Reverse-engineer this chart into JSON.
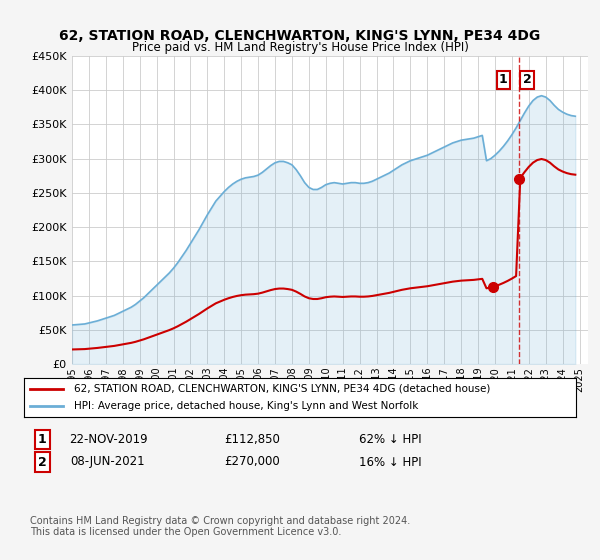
{
  "title": "62, STATION ROAD, CLENCHWARTON, KING'S LYNN, PE34 4DG",
  "subtitle": "Price paid vs. HM Land Registry's House Price Index (HPI)",
  "legend_line1": "62, STATION ROAD, CLENCHWARTON, KING'S LYNN, PE34 4DG (detached house)",
  "legend_line2": "HPI: Average price, detached house, King's Lynn and West Norfolk",
  "footer": "Contains HM Land Registry data © Crown copyright and database right 2024.\nThis data is licensed under the Open Government Licence v3.0.",
  "transaction1_label": "1",
  "transaction1_date": "22-NOV-2019",
  "transaction1_price": "£112,850",
  "transaction1_hpi": "62% ↓ HPI",
  "transaction2_label": "2",
  "transaction2_date": "08-JUN-2021",
  "transaction2_price": "£270,000",
  "transaction2_hpi": "16% ↓ HPI",
  "hpi_color": "#6baed6",
  "price_color": "#cc0000",
  "background_color": "#f5f5f5",
  "plot_bg_color": "#ffffff",
  "ylim": [
    0,
    450000
  ],
  "yticks": [
    0,
    50000,
    100000,
    150000,
    200000,
    250000,
    300000,
    350000,
    400000,
    450000
  ],
  "xlim_start": 1995.0,
  "xlim_end": 2025.5,
  "xticks": [
    1995,
    1996,
    1997,
    1998,
    1999,
    2000,
    2001,
    2002,
    2003,
    2004,
    2005,
    2006,
    2007,
    2008,
    2009,
    2010,
    2011,
    2012,
    2013,
    2014,
    2015,
    2016,
    2017,
    2018,
    2019,
    2020,
    2021,
    2022,
    2023,
    2024,
    2025
  ],
  "hpi_years": [
    1995.0,
    1995.25,
    1995.5,
    1995.75,
    1996.0,
    1996.25,
    1996.5,
    1996.75,
    1997.0,
    1997.25,
    1997.5,
    1997.75,
    1998.0,
    1998.25,
    1998.5,
    1998.75,
    1999.0,
    1999.25,
    1999.5,
    1999.75,
    2000.0,
    2000.25,
    2000.5,
    2000.75,
    2001.0,
    2001.25,
    2001.5,
    2001.75,
    2002.0,
    2002.25,
    2002.5,
    2002.75,
    2003.0,
    2003.25,
    2003.5,
    2003.75,
    2004.0,
    2004.25,
    2004.5,
    2004.75,
    2005.0,
    2005.25,
    2005.5,
    2005.75,
    2006.0,
    2006.25,
    2006.5,
    2006.75,
    2007.0,
    2007.25,
    2007.5,
    2007.75,
    2008.0,
    2008.25,
    2008.5,
    2008.75,
    2009.0,
    2009.25,
    2009.5,
    2009.75,
    2010.0,
    2010.25,
    2010.5,
    2010.75,
    2011.0,
    2011.25,
    2011.5,
    2011.75,
    2012.0,
    2012.25,
    2012.5,
    2012.75,
    2013.0,
    2013.25,
    2013.5,
    2013.75,
    2014.0,
    2014.25,
    2014.5,
    2014.75,
    2015.0,
    2015.25,
    2015.5,
    2015.75,
    2016.0,
    2016.25,
    2016.5,
    2016.75,
    2017.0,
    2017.25,
    2017.5,
    2017.75,
    2018.0,
    2018.25,
    2018.5,
    2018.75,
    2019.0,
    2019.25,
    2019.5,
    2019.75,
    2020.0,
    2020.25,
    2020.5,
    2020.75,
    2021.0,
    2021.25,
    2021.5,
    2021.75,
    2022.0,
    2022.25,
    2022.5,
    2022.75,
    2023.0,
    2023.25,
    2023.5,
    2023.75,
    2024.0,
    2024.25,
    2024.5,
    2024.75
  ],
  "hpi_values": [
    57000,
    57500,
    58000,
    58500,
    60000,
    61500,
    63000,
    65000,
    67000,
    69000,
    71000,
    74000,
    77000,
    80000,
    83000,
    87000,
    92000,
    97000,
    103000,
    109000,
    115000,
    121000,
    127000,
    133000,
    140000,
    148000,
    157000,
    166000,
    176000,
    186000,
    196000,
    207000,
    218000,
    228000,
    238000,
    245000,
    252000,
    258000,
    263000,
    267000,
    270000,
    272000,
    273000,
    274000,
    276000,
    280000,
    285000,
    290000,
    294000,
    296000,
    296000,
    294000,
    291000,
    284000,
    275000,
    265000,
    258000,
    255000,
    255000,
    258000,
    262000,
    264000,
    265000,
    264000,
    263000,
    264000,
    265000,
    265000,
    264000,
    264000,
    265000,
    267000,
    270000,
    273000,
    276000,
    279000,
    283000,
    287000,
    291000,
    294000,
    297000,
    299000,
    301000,
    303000,
    305000,
    308000,
    311000,
    314000,
    317000,
    320000,
    323000,
    325000,
    327000,
    328000,
    329000,
    330000,
    332000,
    334000,
    297000,
    300000,
    305000,
    311000,
    318000,
    326000,
    335000,
    345000,
    356000,
    367000,
    377000,
    385000,
    390000,
    392000,
    390000,
    385000,
    378000,
    372000,
    368000,
    365000,
    363000,
    362000
  ],
  "sale_years": [
    2019.9,
    2021.44
  ],
  "sale_prices": [
    112850,
    270000
  ],
  "sale_marker_color": "#cc0000",
  "dashed_line_x": 2021.44
}
